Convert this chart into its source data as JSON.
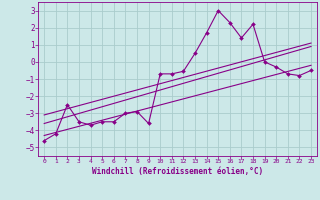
{
  "xlabel": "Windchill (Refroidissement éolien,°C)",
  "ylabel": "",
  "xlim": [
    -0.5,
    23.5
  ],
  "ylim": [
    -5.5,
    3.5
  ],
  "yticks": [
    -5,
    -4,
    -3,
    -2,
    -1,
    0,
    1,
    2,
    3
  ],
  "xticks": [
    0,
    1,
    2,
    3,
    4,
    5,
    6,
    7,
    8,
    9,
    10,
    11,
    12,
    13,
    14,
    15,
    16,
    17,
    18,
    19,
    20,
    21,
    22,
    23
  ],
  "bg_color": "#cce8e8",
  "grid_color": "#aacccc",
  "line_color": "#880088",
  "data_x": [
    0,
    1,
    2,
    3,
    4,
    5,
    6,
    7,
    8,
    9,
    10,
    11,
    12,
    13,
    14,
    15,
    16,
    17,
    18,
    19,
    20,
    21,
    22,
    23
  ],
  "data_y": [
    -4.6,
    -4.2,
    -2.5,
    -3.5,
    -3.7,
    -3.5,
    -3.5,
    -3.0,
    -2.9,
    -3.6,
    -0.7,
    -0.7,
    -0.55,
    0.5,
    1.7,
    3.0,
    2.3,
    1.4,
    2.2,
    0.0,
    -0.3,
    -0.7,
    -0.8,
    -0.5
  ],
  "trend1_x": [
    0,
    23
  ],
  "trend1_y": [
    -3.6,
    0.9
  ],
  "trend2_x": [
    0,
    23
  ],
  "trend2_y": [
    -3.1,
    1.1
  ],
  "trend3_x": [
    0,
    23
  ],
  "trend3_y": [
    -4.3,
    -0.2
  ]
}
